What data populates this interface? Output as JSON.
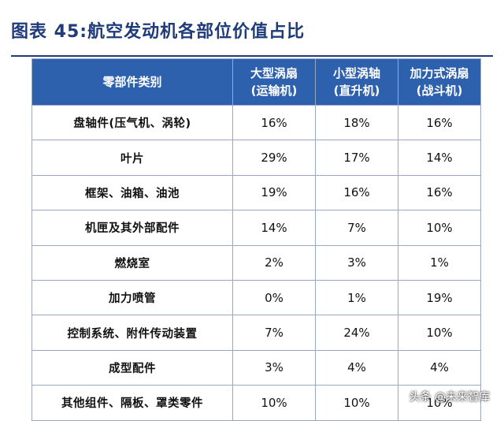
{
  "title": "图表 45:航空发动机各部位价值占比",
  "headers": {
    "category": "零部件类别",
    "col1_line1": "大型涡扇",
    "col1_line2": "(运输机)",
    "col2_line1": "小型涡轴",
    "col2_line2": "(直升机)",
    "col3_line1": "加力式涡扇",
    "col3_line2": "(战斗机)"
  },
  "rows": [
    {
      "category": "盘轴件(压气机、涡轮)",
      "v1": "16%",
      "v2": "18%",
      "v3": "16%"
    },
    {
      "category": "叶片",
      "v1": "29%",
      "v2": "17%",
      "v3": "14%"
    },
    {
      "category": "框架、油箱、油池",
      "v1": "19%",
      "v2": "16%",
      "v3": "16%"
    },
    {
      "category": "机匣及其外部配件",
      "v1": "14%",
      "v2": "7%",
      "v3": "10%"
    },
    {
      "category": "燃烧室",
      "v1": "2%",
      "v2": "3%",
      "v3": "1%"
    },
    {
      "category": "加力喷管",
      "v1": "0%",
      "v2": "1%",
      "v3": "19%"
    },
    {
      "category": "控制系统、附件传动装置",
      "v1": "7%",
      "v2": "24%",
      "v3": "10%"
    },
    {
      "category": "成型配件",
      "v1": "3%",
      "v2": "4%",
      "v3": "4%"
    },
    {
      "category": "其他组件、隔板、罩类零件",
      "v1": "10%",
      "v2": "10%",
      "v3": "10%"
    }
  ],
  "watermark": "头条 @未来智库"
}
